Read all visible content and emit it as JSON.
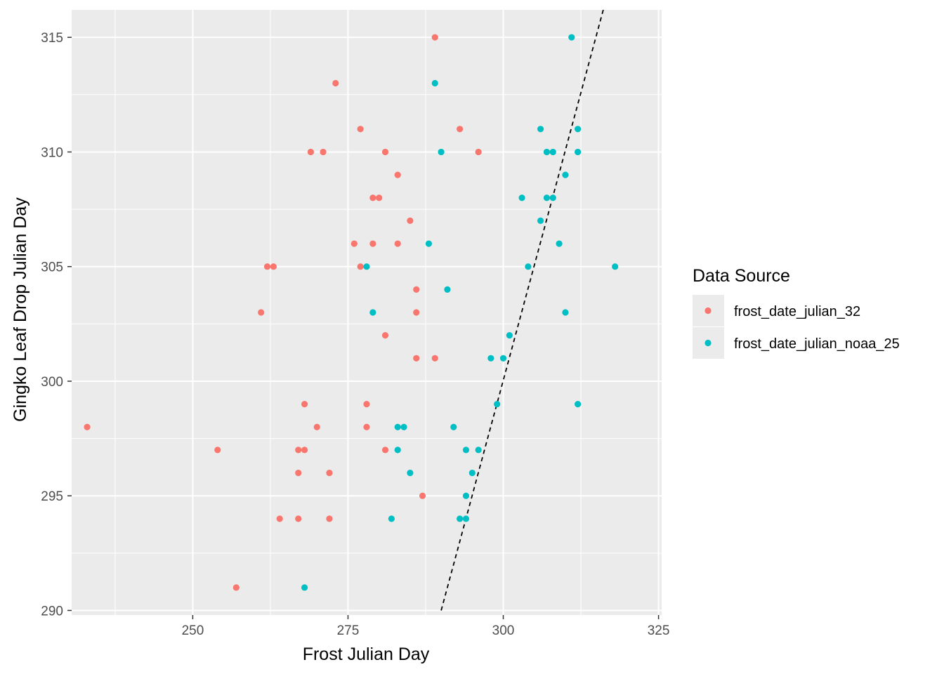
{
  "chart_data": {
    "type": "scatter",
    "title": "",
    "xlabel": "Frost Julian Day",
    "ylabel": "Gingko Leaf Drop Julian Day",
    "xlim": [
      230.5,
      325.5
    ],
    "ylim": [
      289.8,
      316.2
    ],
    "x_ticks": [
      250,
      275,
      300,
      325
    ],
    "y_ticks": [
      290,
      295,
      300,
      305,
      310,
      315
    ],
    "grid": true,
    "legend": {
      "title": "Data Source",
      "placement": "right"
    },
    "series": [
      {
        "name": "frost_date_julian_32",
        "color": "#F8766D",
        "points": [
          [
            233,
            298
          ],
          [
            254,
            297
          ],
          [
            257,
            291
          ],
          [
            261,
            303
          ],
          [
            262,
            305
          ],
          [
            263,
            305
          ],
          [
            264,
            294
          ],
          [
            267,
            297
          ],
          [
            267,
            296
          ],
          [
            267,
            294
          ],
          [
            268,
            299
          ],
          [
            268,
            297
          ],
          [
            269,
            310
          ],
          [
            270,
            298
          ],
          [
            271,
            310
          ],
          [
            272,
            296
          ],
          [
            272,
            294
          ],
          [
            273,
            313
          ],
          [
            276,
            306
          ],
          [
            277,
            311
          ],
          [
            277,
            305
          ],
          [
            278,
            299
          ],
          [
            278,
            298
          ],
          [
            279,
            308
          ],
          [
            279,
            306
          ],
          [
            280,
            308
          ],
          [
            281,
            310
          ],
          [
            281,
            302
          ],
          [
            281,
            297
          ],
          [
            283,
            309
          ],
          [
            283,
            306
          ],
          [
            285,
            307
          ],
          [
            286,
            304
          ],
          [
            286,
            303
          ],
          [
            286,
            301
          ],
          [
            287,
            295
          ],
          [
            289,
            315
          ],
          [
            289,
            301
          ],
          [
            293,
            311
          ],
          [
            296,
            310
          ]
        ]
      },
      {
        "name": "frost_date_julian_noaa_25",
        "color": "#00BFC4",
        "points": [
          [
            268,
            291
          ],
          [
            278,
            305
          ],
          [
            279,
            303
          ],
          [
            282,
            294
          ],
          [
            283,
            298
          ],
          [
            283,
            297
          ],
          [
            284,
            298
          ],
          [
            285,
            296
          ],
          [
            288,
            306
          ],
          [
            289,
            313
          ],
          [
            290,
            310
          ],
          [
            291,
            304
          ],
          [
            292,
            298
          ],
          [
            293,
            294
          ],
          [
            294,
            297
          ],
          [
            294,
            295
          ],
          [
            294,
            294
          ],
          [
            295,
            296
          ],
          [
            296,
            297
          ],
          [
            298,
            301
          ],
          [
            299,
            299
          ],
          [
            300,
            301
          ],
          [
            301,
            302
          ],
          [
            303,
            308
          ],
          [
            304,
            305
          ],
          [
            306,
            311
          ],
          [
            306,
            307
          ],
          [
            307,
            310
          ],
          [
            307,
            308
          ],
          [
            308,
            310
          ],
          [
            308,
            308
          ],
          [
            309,
            306
          ],
          [
            310,
            309
          ],
          [
            310,
            303
          ],
          [
            311,
            315
          ],
          [
            312,
            311
          ],
          [
            312,
            310
          ],
          [
            312,
            299
          ],
          [
            318,
            305
          ]
        ]
      }
    ],
    "reference_line": {
      "style": "dashed",
      "color": "#000000",
      "x": [
        290,
        316.3
      ],
      "y": [
        290,
        316.4
      ]
    }
  }
}
